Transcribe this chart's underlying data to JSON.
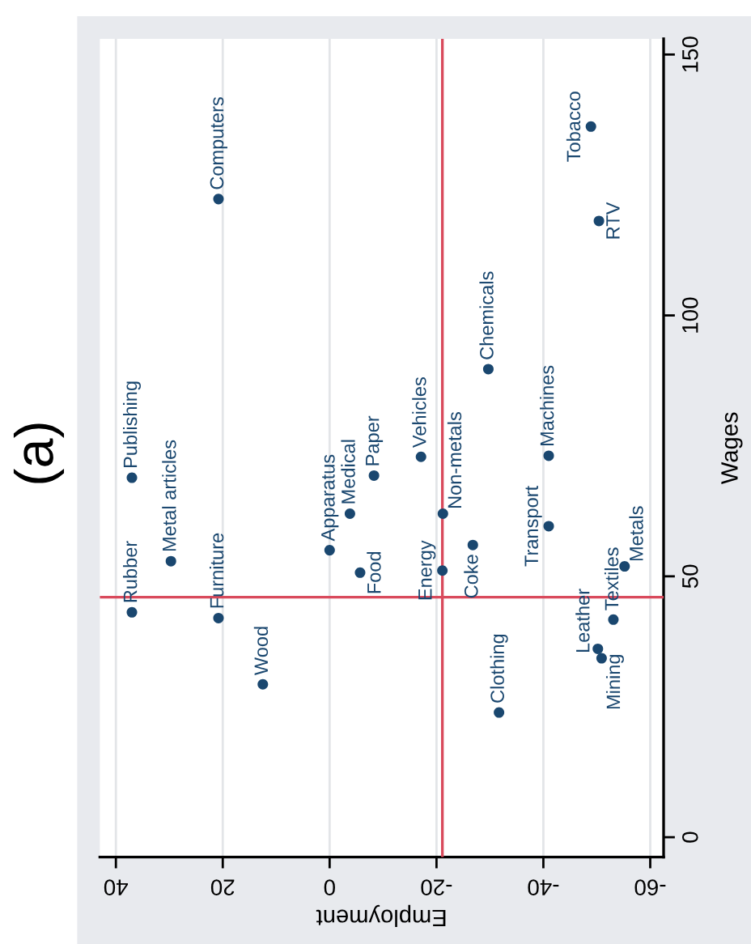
{
  "chart_data": {
    "type": "scatter",
    "title": "(a)",
    "xlabel": "Employment",
    "ylabel": "Wages",
    "x": [
      20.8,
      37.0,
      29.7,
      37.0,
      20.8,
      12.5,
      0.0,
      -3.8,
      -5.7,
      -8.3,
      -17.1,
      -21.1,
      -21.2,
      -26.8,
      -31.7,
      -29.7,
      -41.0,
      -41.0,
      -50.2,
      -50.9,
      -53.1,
      -55.2,
      -48.9,
      -50.4
    ],
    "values": [
      122.3,
      68.9,
      52.9,
      43.1,
      42.0,
      29.3,
      55.0,
      62.0,
      50.7,
      69.3,
      72.9,
      51.1,
      62.0,
      56.0,
      23.9,
      89.7,
      59.6,
      73.1,
      36.1,
      34.3,
      41.7,
      51.9,
      136.2,
      118.1
    ],
    "color": "#1a476f",
    "marker": "circle",
    "xlim": [
      43,
      -62.5
    ],
    "xticks": [
      40,
      20,
      0,
      -20,
      -40,
      -60
    ],
    "ylim": [
      -3.8,
      153
    ],
    "yticks": [
      0,
      50,
      100,
      150
    ],
    "grid": "x",
    "ref_lines": [
      {
        "axis": "x",
        "value": -21.1,
        "color": "#d94a5c"
      },
      {
        "axis": "y",
        "value": 46,
        "color": "#d94a5c"
      }
    ],
    "annotations": [
      {
        "text": "Computers",
        "x": 20.8,
        "y": 122.3
      },
      {
        "text": "Publishing",
        "x": 37.0,
        "y": 68.9
      },
      {
        "text": "Metal articles",
        "x": 29.7,
        "y": 52.9
      },
      {
        "text": "Rubber",
        "x": 37.0,
        "y": 43.1
      },
      {
        "text": "Furniture",
        "x": 20.8,
        "y": 42.0
      },
      {
        "text": "Wood",
        "x": 12.5,
        "y": 29.3
      },
      {
        "text": "Apparatus",
        "x": 0.0,
        "y": 55.0
      },
      {
        "text": "Medical",
        "x": -3.8,
        "y": 62.0
      },
      {
        "text": "Food",
        "x": -5.7,
        "y": 50.7
      },
      {
        "text": "Paper",
        "x": -8.3,
        "y": 69.3
      },
      {
        "text": "Vehicles",
        "x": -17.1,
        "y": 72.9
      },
      {
        "text": "Energy",
        "x": -21.1,
        "y": 51.1
      },
      {
        "text": "Non-metals",
        "x": -21.2,
        "y": 62.0
      },
      {
        "text": "Coke",
        "x": -26.8,
        "y": 56.0
      },
      {
        "text": "Clothing",
        "x": -31.7,
        "y": 23.9
      },
      {
        "text": "Chemicals",
        "x": -29.7,
        "y": 89.7
      },
      {
        "text": "Transport",
        "x": -41.0,
        "y": 59.6
      },
      {
        "text": "Machines",
        "x": -41.0,
        "y": 73.1
      },
      {
        "text": "Leather",
        "x": -50.2,
        "y": 36.1
      },
      {
        "text": "Mining",
        "x": -50.9,
        "y": 34.3
      },
      {
        "text": "Textiles",
        "x": -53.1,
        "y": 41.7
      },
      {
        "text": "Metals",
        "x": -55.2,
        "y": 51.9
      },
      {
        "text": "Tobacco",
        "x": -48.9,
        "y": 136.2
      },
      {
        "text": "RTV",
        "x": -50.4,
        "y": 118.1
      }
    ]
  }
}
